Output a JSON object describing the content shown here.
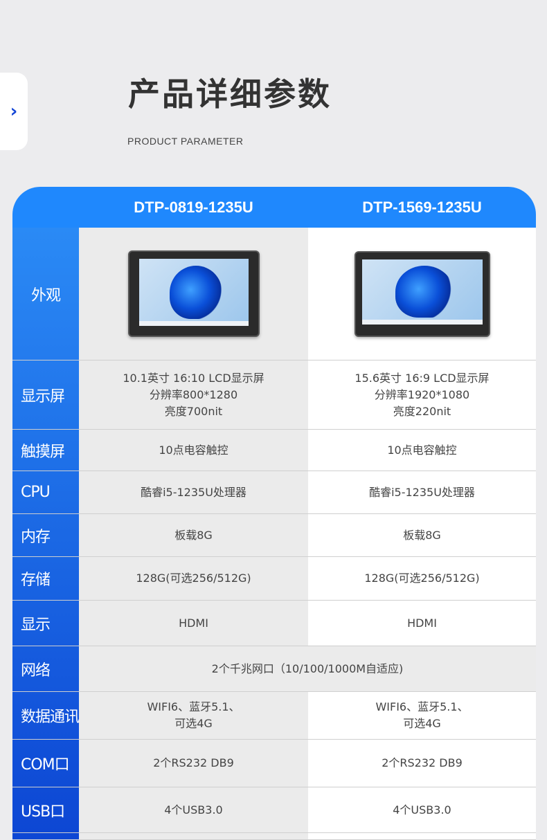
{
  "side_tab": {
    "icon": "chevron-right-icon",
    "glyph": "›"
  },
  "title": "产品详细参数",
  "subtitle": "PRODUCT PARAMETER",
  "colors": {
    "header": "#1f88fd",
    "label_top": "#2a8af5",
    "label_bottom": "#0d47d4",
    "col1_bg": "#ebebeb"
  },
  "models": [
    "DTP-0819-1235U",
    "DTP-1569-1235U"
  ],
  "rows": [
    {
      "label": "外观",
      "image": true
    },
    {
      "label": "显示屏",
      "v1": "10.1英寸 16:10 LCD显示屏\n分辨率800*1280\n亮度700nit",
      "v2": "15.6英寸 16:9 LCD显示屏\n分辨率1920*1080\n亮度220nit"
    },
    {
      "label": "触摸屏",
      "v1": "10点电容触控",
      "v2": "10点电容触控"
    },
    {
      "label": "CPU",
      "v1": "酷睿i5-1235U处理器",
      "v2": "酷睿i5-1235U处理器"
    },
    {
      "label": "内存",
      "v1": "板载8G",
      "v2": "板载8G"
    },
    {
      "label": "存储",
      "v1": "128G(可选256/512G)",
      "v2": "128G(可选256/512G)"
    },
    {
      "label": "显示",
      "v1": "HDMI",
      "v2": "HDMI"
    },
    {
      "label": "网络",
      "merged": "2个千兆网口（10/100/1000M自适应)"
    },
    {
      "label": "数据通讯",
      "v1": "WIFI6、蓝牙5.1、\n可选4G",
      "v2": "WIFI6、蓝牙5.1、\n可选4G"
    },
    {
      "label": "COM口",
      "v1": "2个RS232 DB9",
      "v2": "2个RS232 DB9"
    },
    {
      "label": "USB口",
      "v1": "4个USB3.0",
      "v2": "4个USB3.0"
    }
  ]
}
